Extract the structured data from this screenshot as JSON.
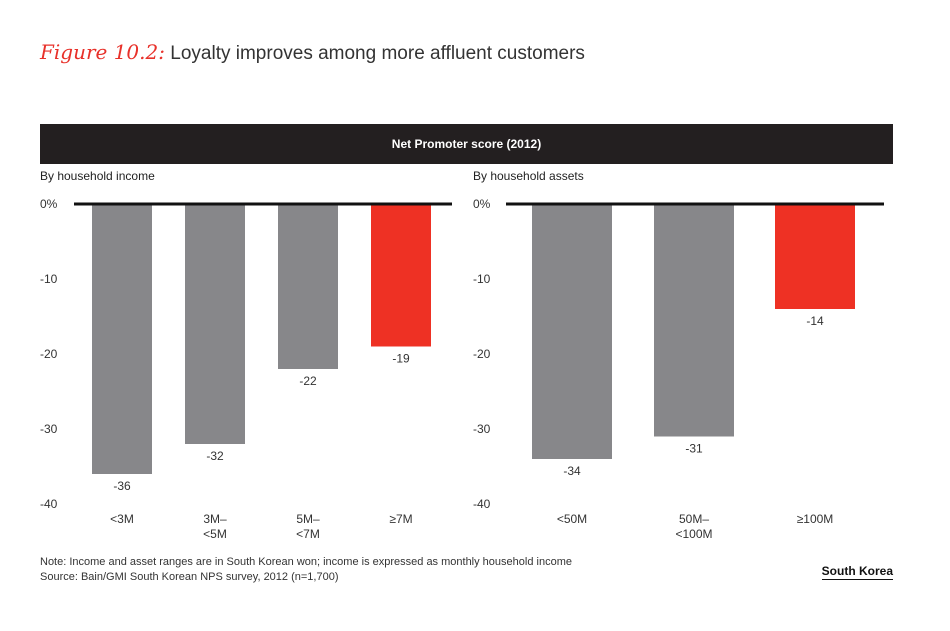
{
  "figure": {
    "label": "Figure 10.2:",
    "title": "Loyalty improves among more affluent customers"
  },
  "banner": "Net Promoter score (2012)",
  "colors": {
    "gray": "#87878a",
    "red": "#ee3124",
    "banner": "#231f20"
  },
  "chart_data": [
    {
      "type": "bar",
      "panel_title": "By household income",
      "categories": [
        [
          "<3M"
        ],
        [
          "3M–",
          "<5M"
        ],
        [
          "5M–",
          "<7M"
        ],
        [
          "≥7M"
        ]
      ],
      "values": [
        -36,
        -32,
        -22,
        -19
      ],
      "highlight": [
        false,
        false,
        false,
        true
      ],
      "value_labels": [
        "-36",
        "-32",
        "-22",
        "-19"
      ],
      "y_ticks": [
        "0%",
        "-10",
        "-20",
        "-30",
        "-40"
      ],
      "ylim": [
        -40,
        0
      ]
    },
    {
      "type": "bar",
      "panel_title": "By household assets",
      "categories": [
        [
          "<50M"
        ],
        [
          "50M–",
          "<100M"
        ],
        [
          "≥100M"
        ]
      ],
      "values": [
        -34,
        -31,
        -14
      ],
      "highlight": [
        false,
        false,
        true
      ],
      "value_labels": [
        "-34",
        "-31",
        "-14"
      ],
      "y_ticks": [
        "0%",
        "-10",
        "-20",
        "-30",
        "-40"
      ],
      "ylim": [
        -40,
        0
      ]
    }
  ],
  "footer": {
    "note": "Note: Income and asset ranges are in South Korean won; income is expressed as monthly household income",
    "source": "Source: Bain/GMI South Korean NPS survey, 2012 (n=1,700)",
    "country": "South Korea"
  }
}
